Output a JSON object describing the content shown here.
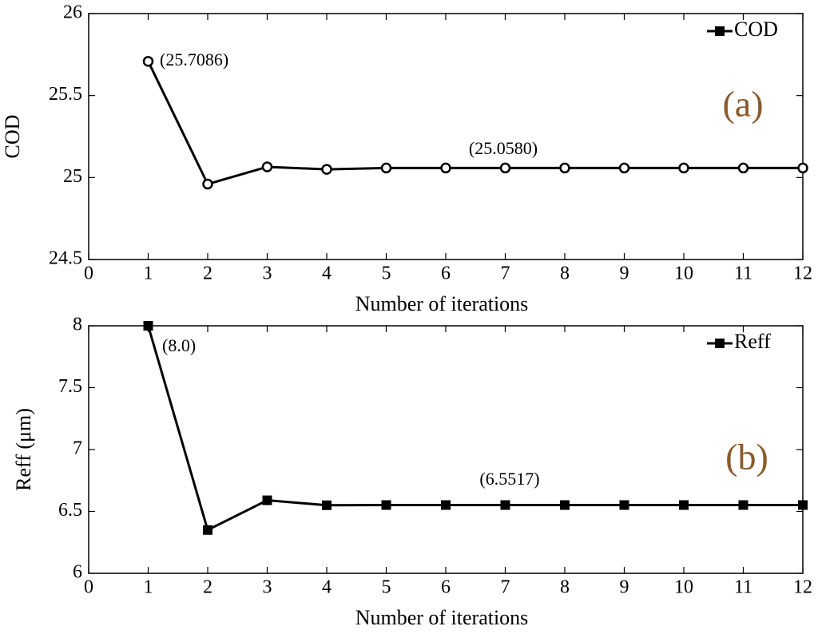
{
  "chart_data": [
    {
      "type": "line",
      "panel_label": "(a)",
      "xlabel": "Number of iterations",
      "ylabel": "COD",
      "x": [
        1,
        2,
        3,
        4,
        5,
        6,
        7,
        8,
        9,
        10,
        11,
        12
      ],
      "series": [
        {
          "name": "COD",
          "color": "#000000",
          "marker": "circle",
          "values": [
            25.7086,
            24.96,
            25.065,
            25.05,
            25.058,
            25.058,
            25.058,
            25.058,
            25.058,
            25.058,
            25.058,
            25.058
          ]
        }
      ],
      "xlim": [
        0,
        12
      ],
      "xticks": [
        0,
        1,
        2,
        3,
        4,
        5,
        6,
        7,
        8,
        9,
        10,
        11,
        12
      ],
      "ylim": [
        24.5,
        26
      ],
      "yticks": [
        24.5,
        25,
        25.5,
        26
      ],
      "legend": "upper right",
      "annotations": [
        "(25.7086)",
        "(25.0580)"
      ]
    },
    {
      "type": "line",
      "panel_label": "(b)",
      "xlabel": "Number of iterations",
      "ylabel": "Reff (μm)",
      "x": [
        1,
        2,
        3,
        4,
        5,
        6,
        7,
        8,
        9,
        10,
        11,
        12
      ],
      "series": [
        {
          "name": "Reff",
          "color": "#000000",
          "marker": "square",
          "values": [
            8.0,
            6.35,
            6.59,
            6.55,
            6.5517,
            6.5517,
            6.5517,
            6.5517,
            6.5517,
            6.5517,
            6.5517,
            6.5517
          ]
        }
      ],
      "xlim": [
        0,
        12
      ],
      "xticks": [
        0,
        1,
        2,
        3,
        4,
        5,
        6,
        7,
        8,
        9,
        10,
        11,
        12
      ],
      "ylim": [
        6,
        8
      ],
      "yticks": [
        6,
        6.5,
        7,
        7.5,
        8
      ],
      "legend": "upper right",
      "annotations": [
        "(8.0)",
        "(6.5517)"
      ]
    }
  ]
}
